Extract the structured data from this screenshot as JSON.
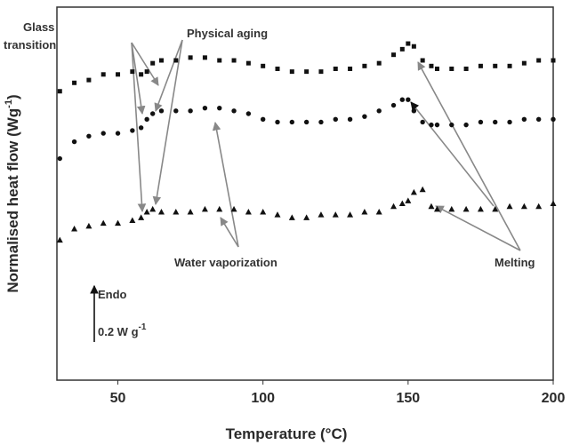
{
  "chart_data": {
    "type": "scatter",
    "xlabel": "Temperature (°C)",
    "ylabel": [
      "Normalised heat flow (Wg",
      "-1",
      ")"
    ],
    "xlim": [
      29,
      200
    ],
    "xticks": [
      50,
      100,
      150,
      200
    ],
    "ylim": [
      0,
      1.33
    ],
    "x": [
      30,
      35,
      40,
      45,
      50,
      55,
      58,
      60,
      62,
      65,
      70,
      75,
      80,
      85,
      90,
      95,
      100,
      105,
      110,
      115,
      120,
      125,
      130,
      135,
      140,
      145,
      148,
      150,
      152,
      155,
      158,
      160,
      165,
      170,
      175,
      180,
      185,
      190,
      195,
      200
    ],
    "series": [
      {
        "marker": "square",
        "color": "#111111",
        "values": [
          1.03,
          1.06,
          1.07,
          1.09,
          1.09,
          1.1,
          1.09,
          1.1,
          1.13,
          1.14,
          1.14,
          1.15,
          1.15,
          1.14,
          1.14,
          1.13,
          1.12,
          1.11,
          1.1,
          1.1,
          1.1,
          1.11,
          1.11,
          1.12,
          1.13,
          1.16,
          1.18,
          1.2,
          1.19,
          1.14,
          1.12,
          1.11,
          1.11,
          1.11,
          1.12,
          1.12,
          1.12,
          1.13,
          1.14,
          1.14
        ]
      },
      {
        "marker": "circle",
        "color": "#111111",
        "values": [
          0.79,
          0.85,
          0.87,
          0.88,
          0.88,
          0.89,
          0.9,
          0.93,
          0.95,
          0.96,
          0.96,
          0.96,
          0.97,
          0.97,
          0.96,
          0.95,
          0.93,
          0.92,
          0.92,
          0.92,
          0.92,
          0.93,
          0.93,
          0.94,
          0.96,
          0.98,
          1.0,
          1.0,
          0.96,
          0.92,
          0.91,
          0.91,
          0.91,
          0.91,
          0.92,
          0.92,
          0.92,
          0.93,
          0.93,
          0.93
        ]
      },
      {
        "marker": "triangle",
        "color": "#111111",
        "values": [
          0.5,
          0.54,
          0.55,
          0.56,
          0.56,
          0.57,
          0.58,
          0.6,
          0.61,
          0.6,
          0.6,
          0.6,
          0.61,
          0.61,
          0.61,
          0.6,
          0.6,
          0.59,
          0.58,
          0.58,
          0.59,
          0.59,
          0.59,
          0.6,
          0.6,
          0.62,
          0.63,
          0.64,
          0.67,
          0.68,
          0.62,
          0.61,
          0.61,
          0.61,
          0.61,
          0.61,
          0.62,
          0.62,
          0.62,
          0.63
        ]
      }
    ],
    "annotations": {
      "glass_transition": [
        "Glass",
        "transition"
      ],
      "physical_aging": "Physical aging",
      "water_vaporization": "Water vaporization",
      "melting": "Melting",
      "endo": "Endo"
    },
    "scale_bar": {
      "value": 0.2,
      "label": "0.2 W g",
      "label_sup": "-1"
    }
  }
}
